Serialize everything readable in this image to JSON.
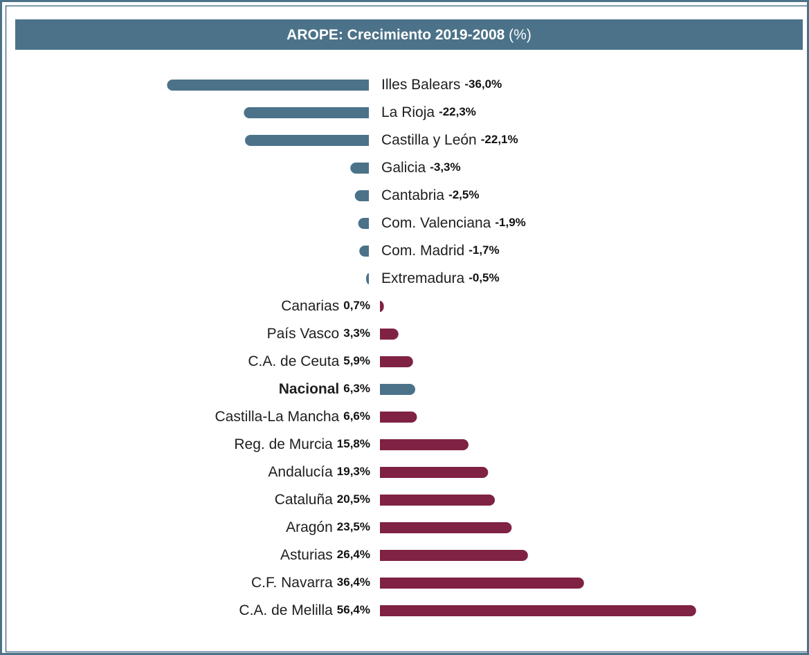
{
  "chart_data": {
    "type": "bar",
    "orientation": "horizontal",
    "title": "AROPE: Crecimiento 2019-2008",
    "title_unit": "(%)",
    "categories": [
      "Illes Balears",
      "La Rioja",
      "Castilla y León",
      "Galicia",
      "Cantabria",
      "Com. Valenciana",
      "Com. Madrid",
      "Extremadura",
      "Canarias",
      "País Vasco",
      "C.A. de Ceuta",
      "Nacional",
      "Castilla-La Mancha",
      "Reg. de Murcia",
      "Andalucía",
      "Cataluña",
      "Aragón",
      "Asturias",
      "C.F. Navarra",
      "C.A. de Melilla"
    ],
    "values": [
      -36.0,
      -22.3,
      -22.1,
      -3.3,
      -2.5,
      -1.9,
      -1.7,
      -0.5,
      0.7,
      3.3,
      5.9,
      6.3,
      6.6,
      15.8,
      19.3,
      20.5,
      23.5,
      26.4,
      36.4,
      56.4
    ],
    "value_labels": [
      "-36,0%",
      "-22,3%",
      "-22,1%",
      "-3,3%",
      "-2,5%",
      "-1,9%",
      "-1,7%",
      "-0,5%",
      "0,7%",
      "3,3%",
      "5,9%",
      "6,3%",
      "6,6%",
      "15,8%",
      "19,3%",
      "20,5%",
      "23,5%",
      "26,4%",
      "36,4%",
      "56,4%"
    ],
    "colors": [
      "#4b7289",
      "#4b7289",
      "#4b7289",
      "#4b7289",
      "#4b7289",
      "#4b7289",
      "#4b7289",
      "#4b7289",
      "#7f2244",
      "#7f2244",
      "#7f2244",
      "#4b7289",
      "#7f2244",
      "#7f2244",
      "#7f2244",
      "#7f2244",
      "#7f2244",
      "#7f2244",
      "#7f2244",
      "#7f2244"
    ],
    "highlight_index": 11
  }
}
